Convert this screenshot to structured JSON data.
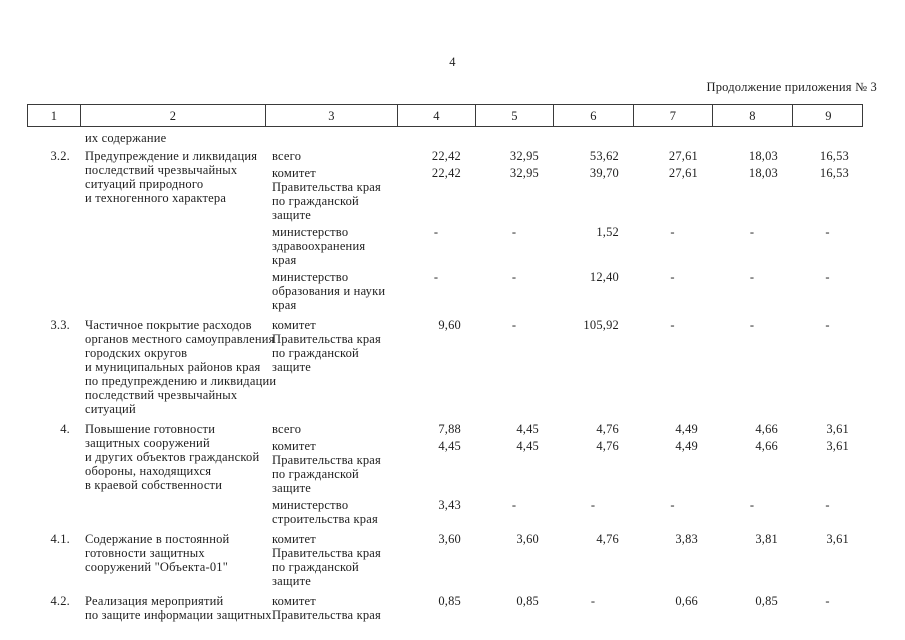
{
  "page": {
    "number": "4",
    "continuation": "Продолжение приложения № 3"
  },
  "table": {
    "columns": [
      "1",
      "2",
      "3",
      "4",
      "5",
      "6",
      "7",
      "8",
      "9"
    ],
    "carryover": "их содержание",
    "rows": [
      {
        "num": "3.2.",
        "title": "Предупреждение и ликвидация\nпоследствий чрезвычайных\nситуаций природного\nи техногенного характера",
        "entries": [
          {
            "source": "всего",
            "values": [
              "22,42",
              "32,95",
              "53,62",
              "27,61",
              "18,03",
              "16,53"
            ]
          },
          {
            "source": "комитет\nПравительства края\nпо гражданской\nзащите",
            "values": [
              "22,42",
              "32,95",
              "39,70",
              "27,61",
              "18,03",
              "16,53"
            ]
          },
          {
            "source": "министерство\nздравоохранения\nкрая",
            "values": [
              "-",
              "-",
              "1,52",
              "-",
              "-",
              "-"
            ]
          },
          {
            "source": "министерство\nобразования и науки\nкрая",
            "values": [
              "-",
              "-",
              "12,40",
              "-",
              "-",
              "-"
            ]
          }
        ]
      },
      {
        "num": "3.3.",
        "title": "Частичное покрытие расходов\nорганов местного самоуправления\nгородских округов\nи муниципальных районов края\nпо предупреждению и ликвидации\nпоследствий чрезвычайных\nситуаций",
        "entries": [
          {
            "source": "комитет\nПравительства края\nпо гражданской\nзащите",
            "values": [
              "9,60",
              "-",
              "105,92",
              "-",
              "-",
              "-"
            ]
          }
        ]
      },
      {
        "num": "4.",
        "title": "Повышение готовности\nзащитных сооружений\nи других объектов гражданской\nобороны, находящихся\nв краевой собственности",
        "entries": [
          {
            "source": "всего",
            "values": [
              "7,88",
              "4,45",
              "4,76",
              "4,49",
              "4,66",
              "3,61"
            ]
          },
          {
            "source": "комитет\nПравительства края\nпо гражданской\nзащите",
            "values": [
              "4,45",
              "4,45",
              "4,76",
              "4,49",
              "4,66",
              "3,61"
            ]
          },
          {
            "source": "министерство\nстроительства края",
            "values": [
              "3,43",
              "-",
              "-",
              "-",
              "-",
              "-"
            ]
          }
        ]
      },
      {
        "num": "4.1.",
        "title": "Содержание в постоянной\nготовности защитных\nсооружений \"Объекта-01\"",
        "entries": [
          {
            "source": "комитет\nПравительства края\nпо гражданской\nзащите",
            "values": [
              "3,60",
              "3,60",
              "4,76",
              "3,83",
              "3,81",
              "3,61"
            ]
          }
        ]
      },
      {
        "num": "4.2.",
        "title": "Реализация мероприятий\nпо защите информации защитных",
        "entries": [
          {
            "source": "комитет\nПравительства края",
            "values": [
              "0,85",
              "0,85",
              "-",
              "0,66",
              "0,85",
              "-"
            ]
          }
        ]
      }
    ]
  }
}
